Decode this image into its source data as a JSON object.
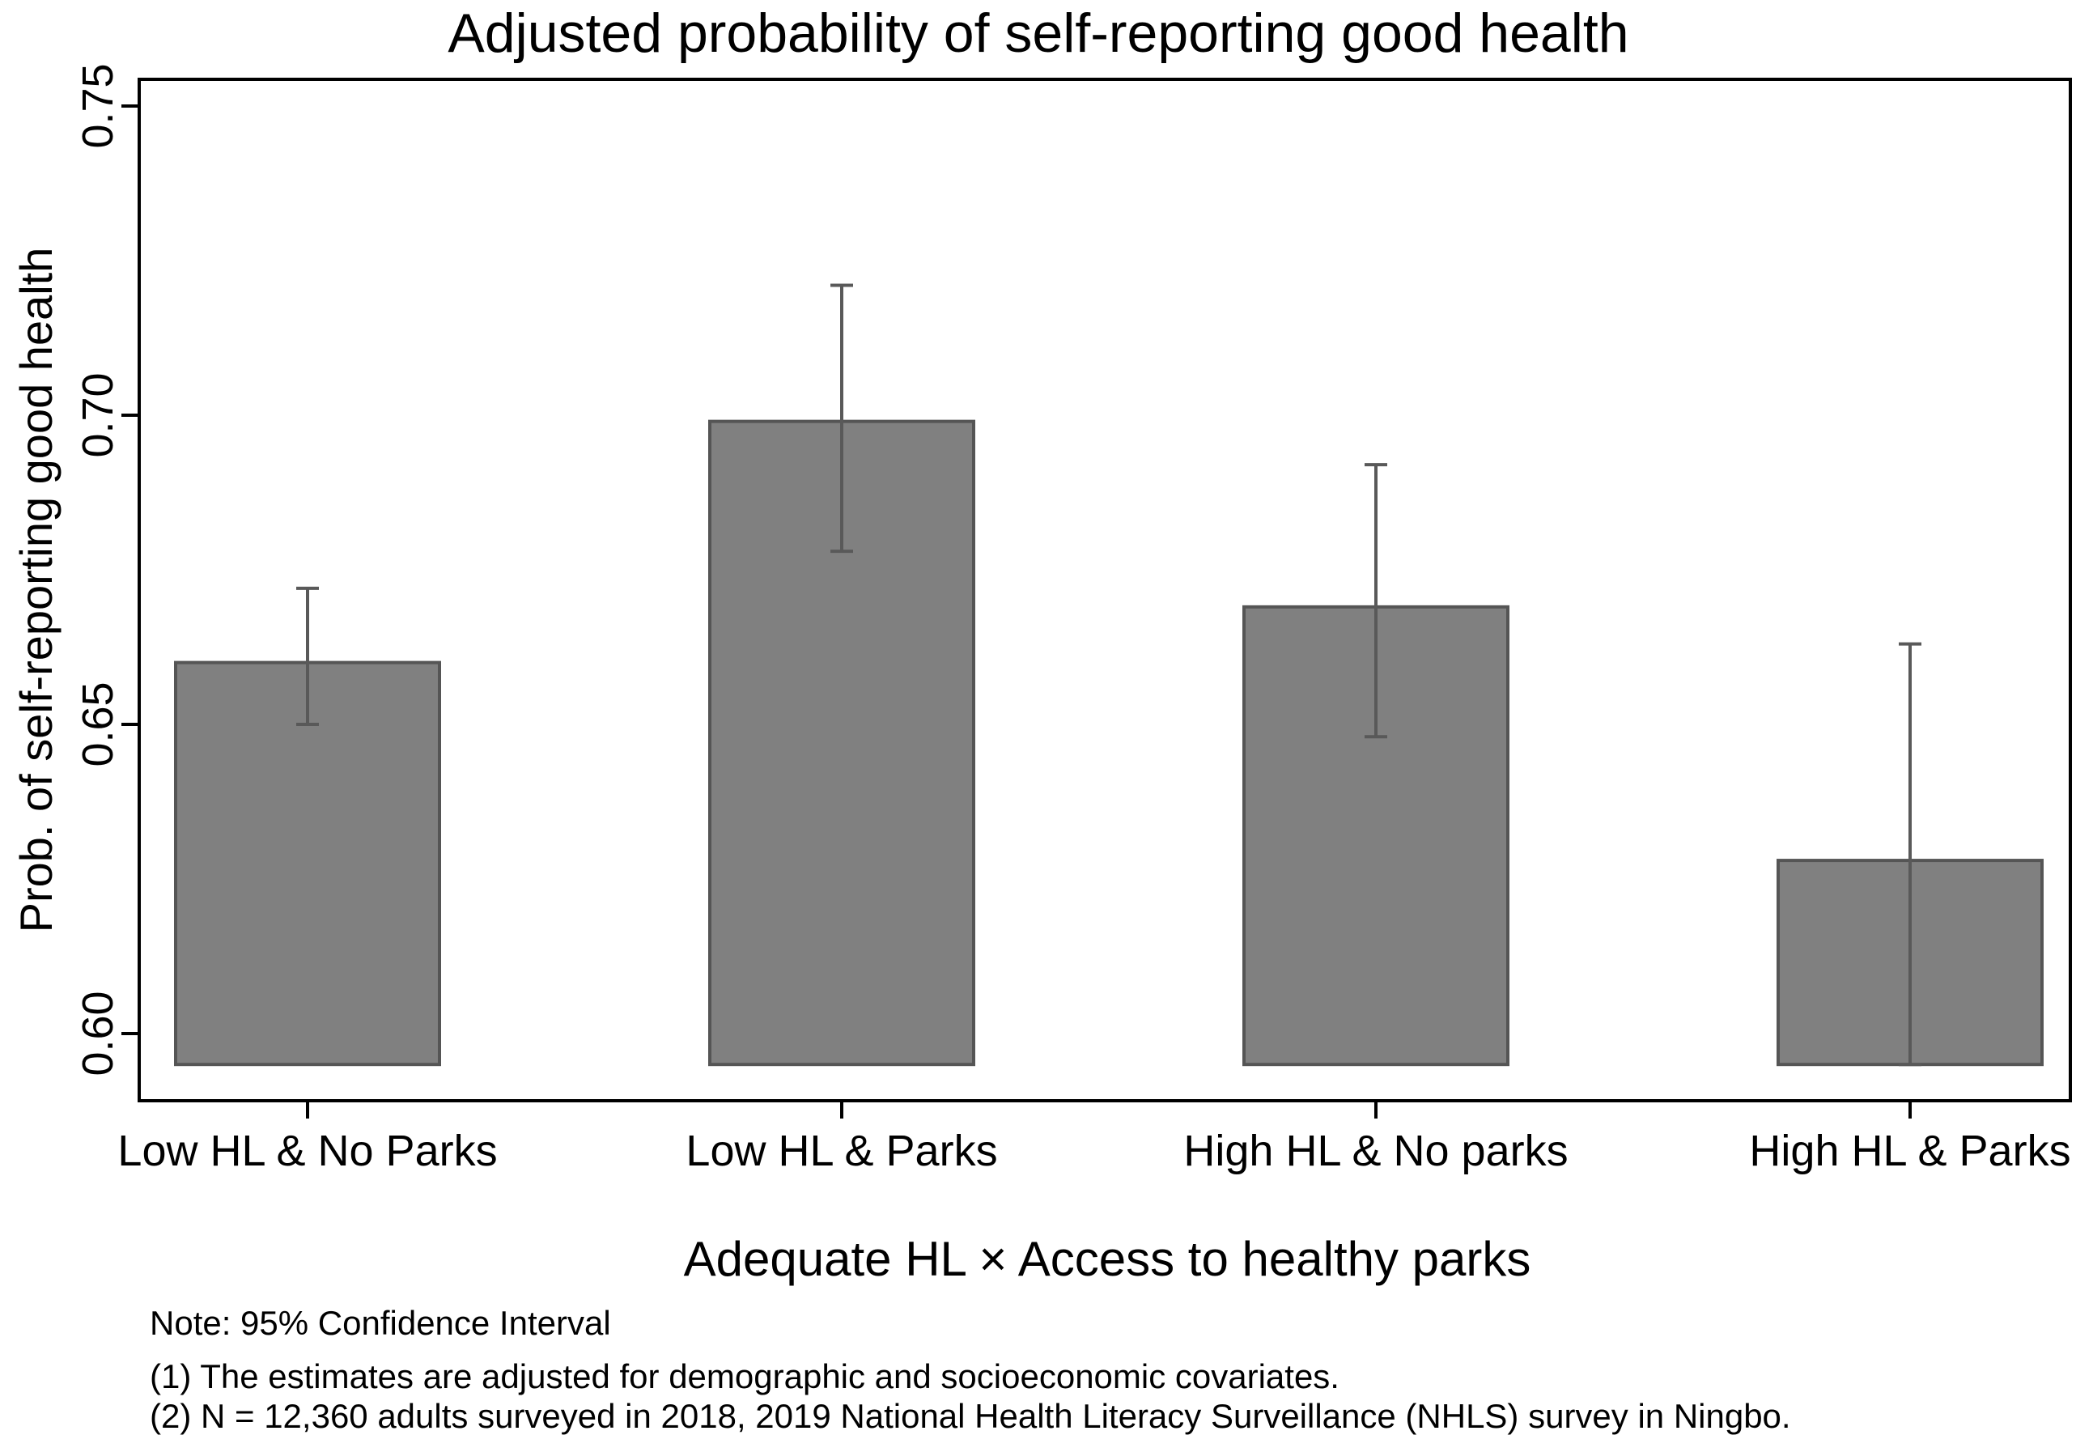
{
  "chart_data": {
    "type": "bar",
    "title": "Adjusted probability of self-reporting good health",
    "xlabel": "Adequate HL × Access to healthy parks",
    "ylabel": "Prob. of self-reporting good health",
    "ylim": [
      0.59,
      0.755
    ],
    "bar_baseline": 0.595,
    "yticks": [
      0.6,
      0.65,
      0.7,
      0.75
    ],
    "ytick_labels": [
      "0.60",
      "0.65",
      "0.70",
      "0.75"
    ],
    "categories": [
      "Low HL & No Parks",
      "Low HL & Parks",
      "High HL & No parks",
      "High HL & Parks"
    ],
    "values": [
      0.66,
      0.699,
      0.669,
      0.628
    ],
    "ci_lower": [
      0.65,
      0.678,
      0.648,
      0.595
    ],
    "ci_upper": [
      0.672,
      0.721,
      0.692,
      0.663
    ],
    "grid": false,
    "colors": {
      "bar_fill": "#808080",
      "bar_edge": "#555555",
      "errorbar": "#595959",
      "axis": "#000000"
    },
    "notes": [
      "Note: 95% Confidence Interval",
      "(1) The estimates are adjusted for demographic and socioeconomic covariates.",
      "(2) N = 12,360 adults surveyed in 2018, 2019 National Health Literacy Surveillance (NHLS) survey in Ningbo."
    ]
  }
}
